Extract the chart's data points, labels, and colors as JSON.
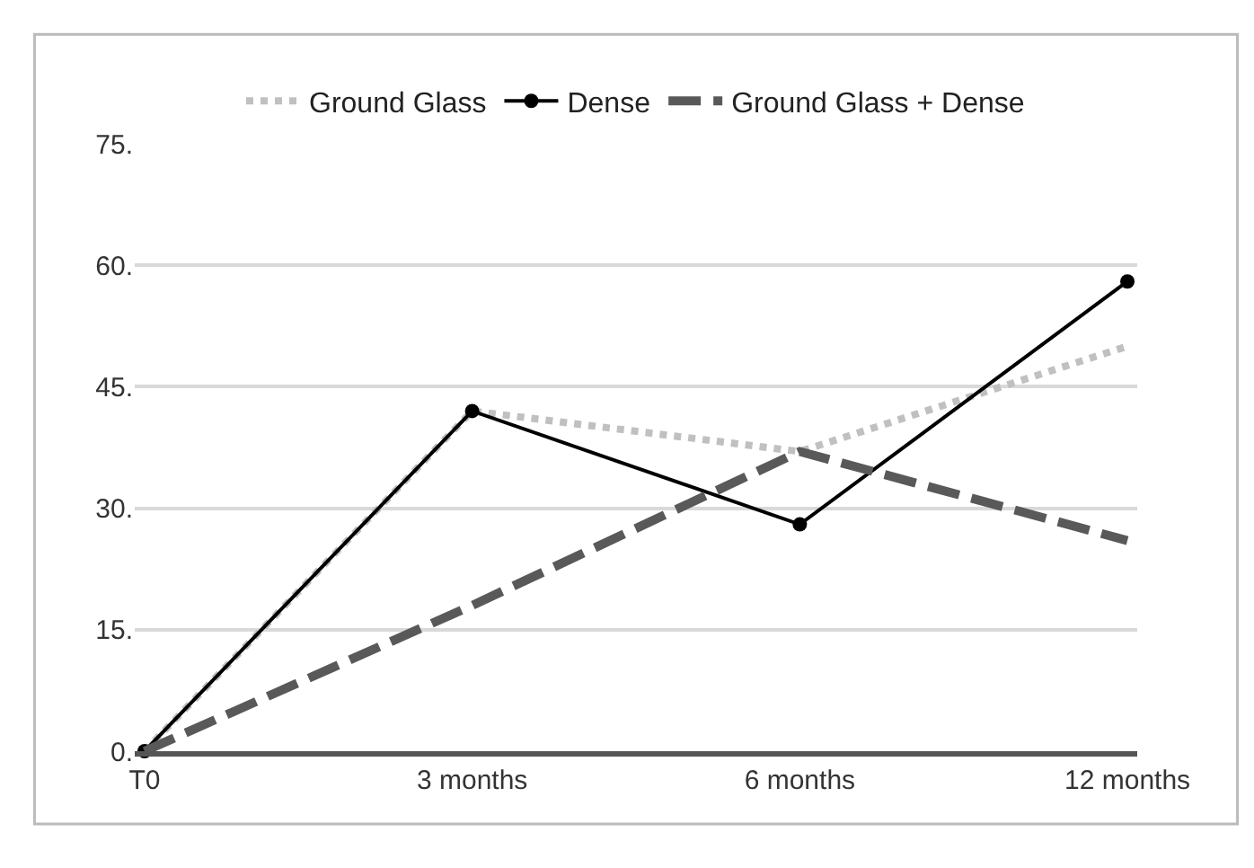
{
  "chart_data": {
    "type": "line",
    "categories": [
      "T0",
      "3 months",
      "6 months",
      "12 months"
    ],
    "series": [
      {
        "name": "Ground Glass",
        "color": "#c0c0c0",
        "values": [
          0,
          42,
          37,
          50
        ],
        "line_style": "dotted",
        "marker": "none"
      },
      {
        "name": "Dense",
        "color": "#000000",
        "values": [
          0,
          42,
          28,
          58
        ],
        "line_style": "solid",
        "marker": "circle"
      },
      {
        "name": "Ground Glass + Dense",
        "color": "#595959",
        "values": [
          0,
          18,
          37,
          26
        ],
        "line_style": "dashed",
        "marker": "none"
      }
    ],
    "ylim": [
      0,
      75
    ],
    "yticks": [
      {
        "value": 0,
        "label": "0."
      },
      {
        "value": 15,
        "label": "15."
      },
      {
        "value": 30,
        "label": "30."
      },
      {
        "value": 45,
        "label": "45."
      },
      {
        "value": 60,
        "label": "60."
      },
      {
        "value": 75,
        "label": "75."
      }
    ],
    "grid": "y",
    "legend": "top"
  }
}
